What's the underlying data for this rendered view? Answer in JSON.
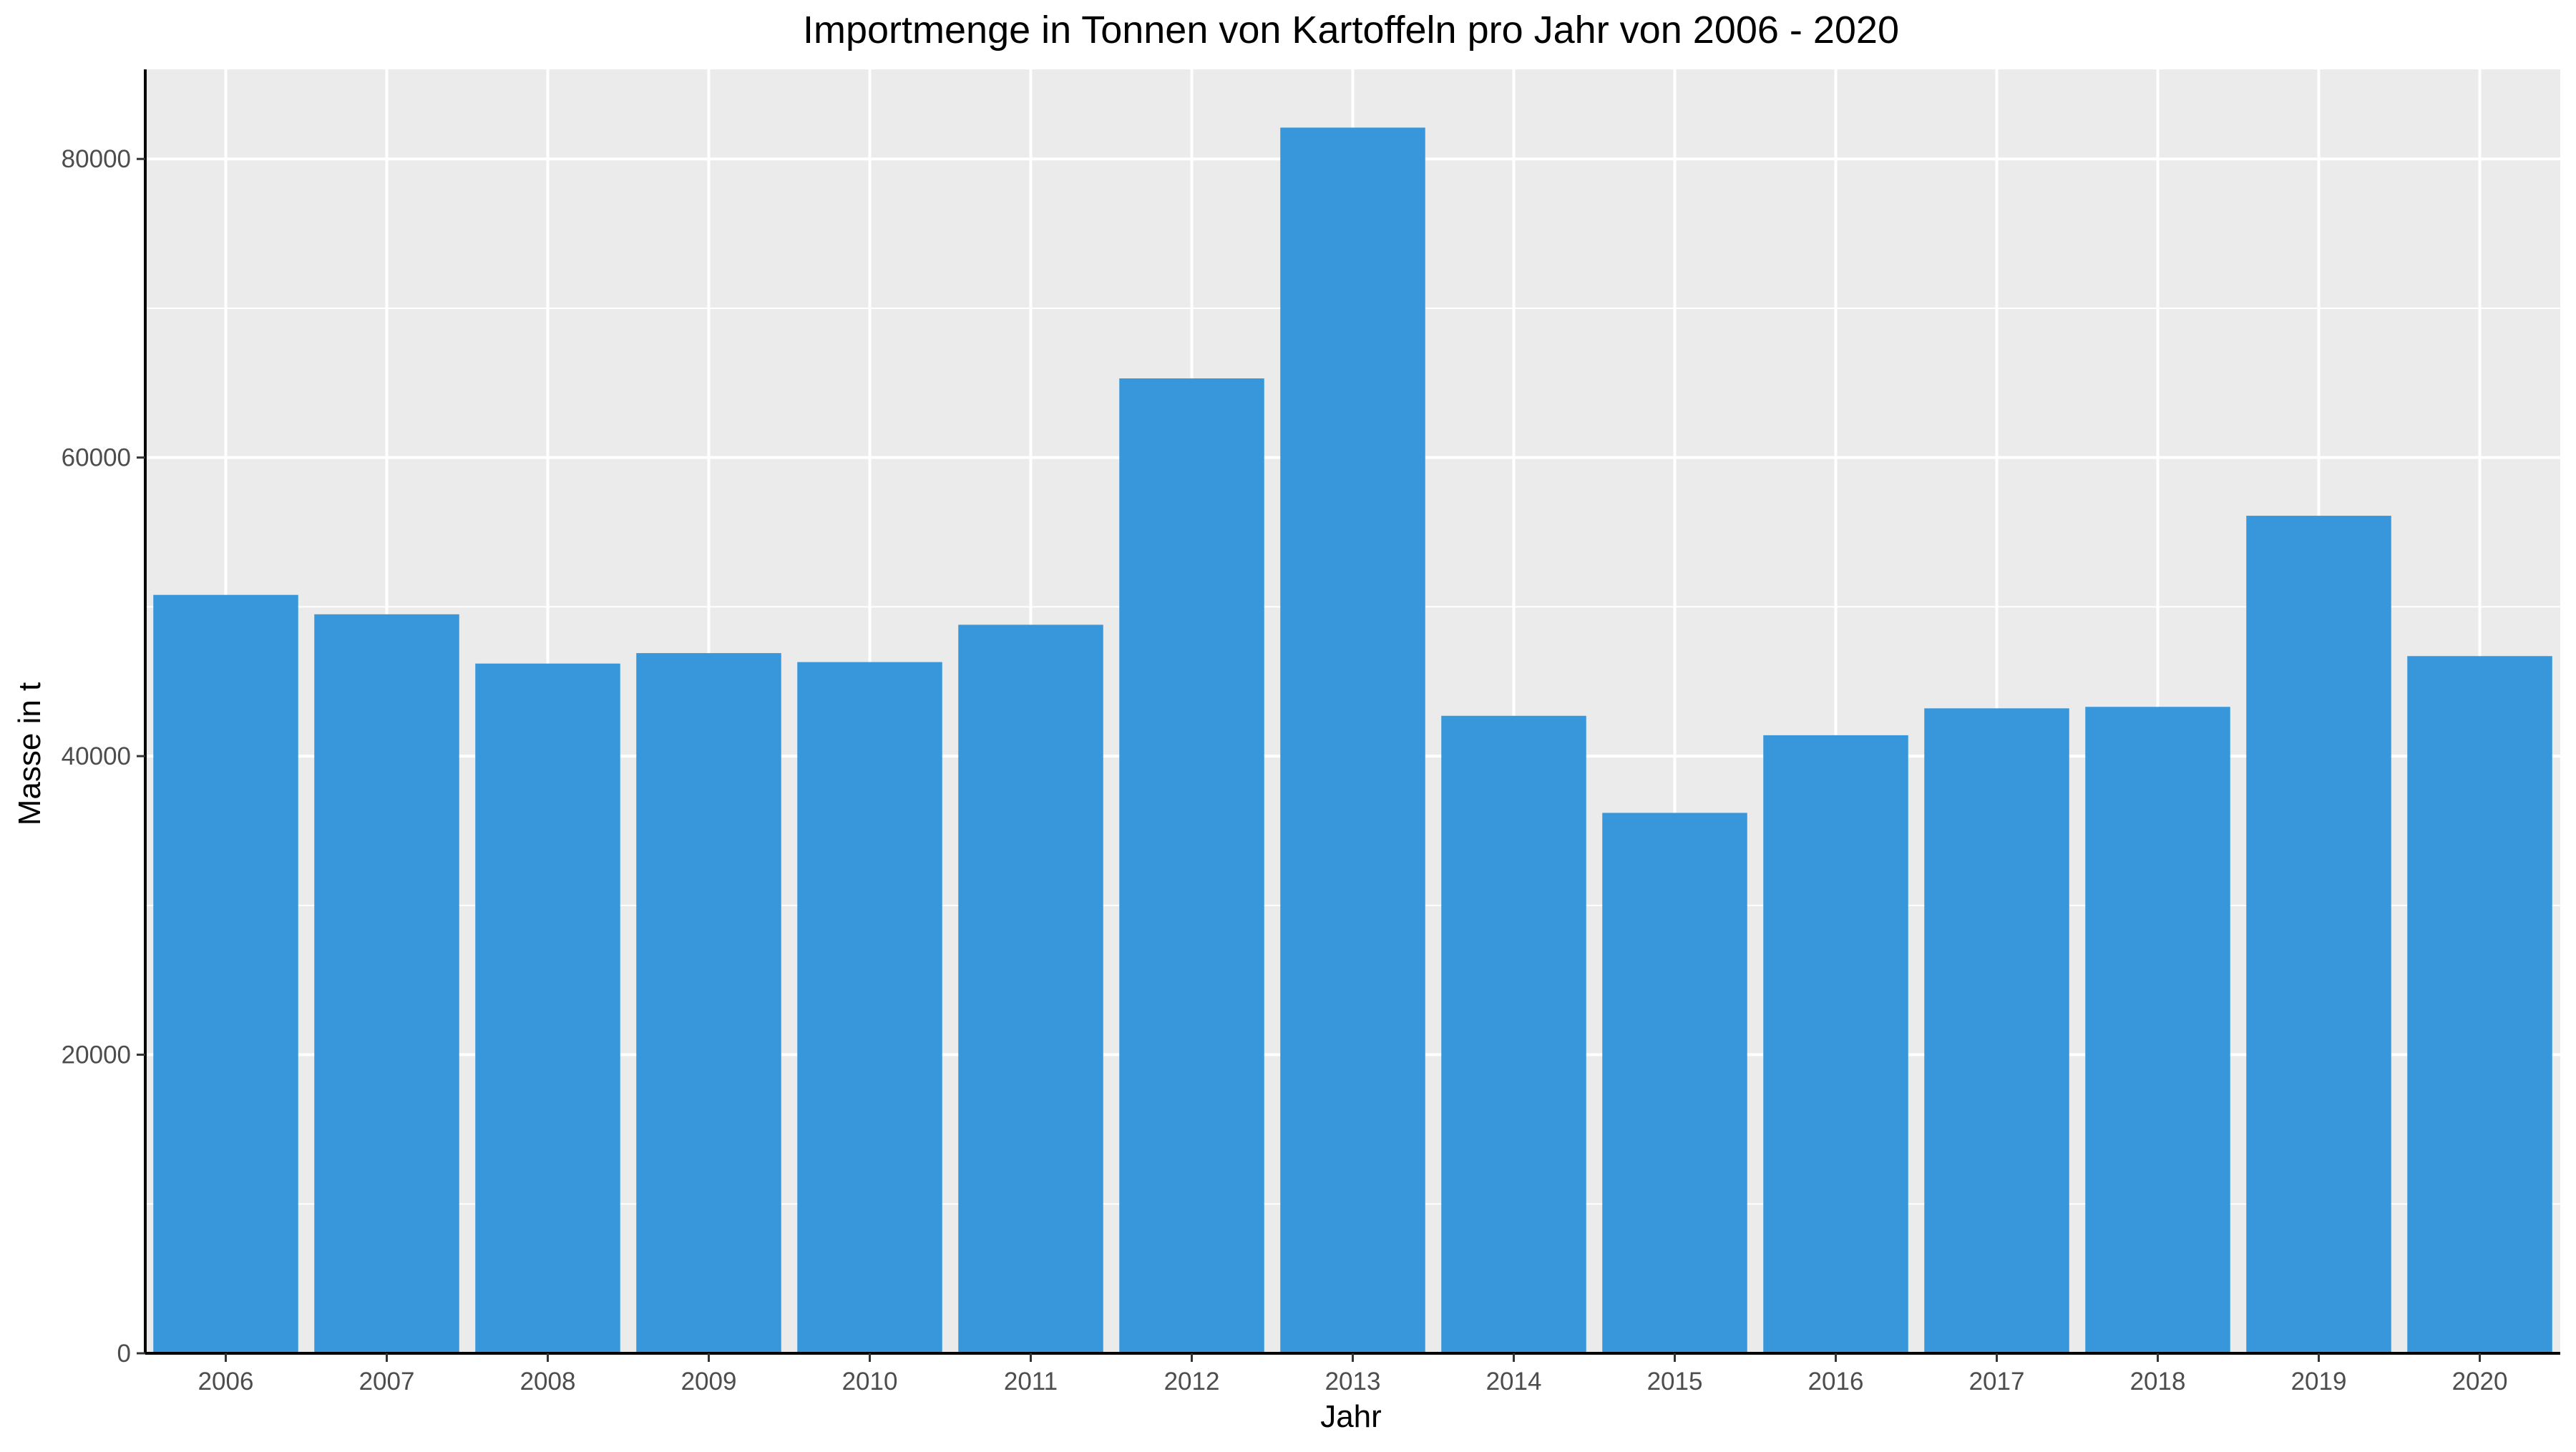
{
  "chart_data": {
    "type": "bar",
    "title": "Importmenge in Tonnen von Kartoffeln pro Jahr von 2006 - 2020",
    "xlabel": "Jahr",
    "ylabel": "Masse in t",
    "categories": [
      "2006",
      "2007",
      "2008",
      "2009",
      "2010",
      "2011",
      "2012",
      "2013",
      "2014",
      "2015",
      "2016",
      "2017",
      "2018",
      "2019",
      "2020"
    ],
    "values": [
      50800,
      49500,
      46200,
      46900,
      46300,
      48800,
      65300,
      82100,
      42700,
      36200,
      41400,
      43200,
      43300,
      56100,
      46700
    ],
    "ylim": [
      0,
      86000
    ],
    "yticks": [
      0,
      20000,
      40000,
      60000,
      80000
    ],
    "ytick_labels": [
      "0",
      "20000",
      "40000",
      "60000",
      "80000"
    ],
    "grid": true,
    "colors": {
      "bar": "#3797da",
      "panel_background": "#ebebeb",
      "grid": "#ffffff",
      "axis_line": "#000000"
    }
  }
}
